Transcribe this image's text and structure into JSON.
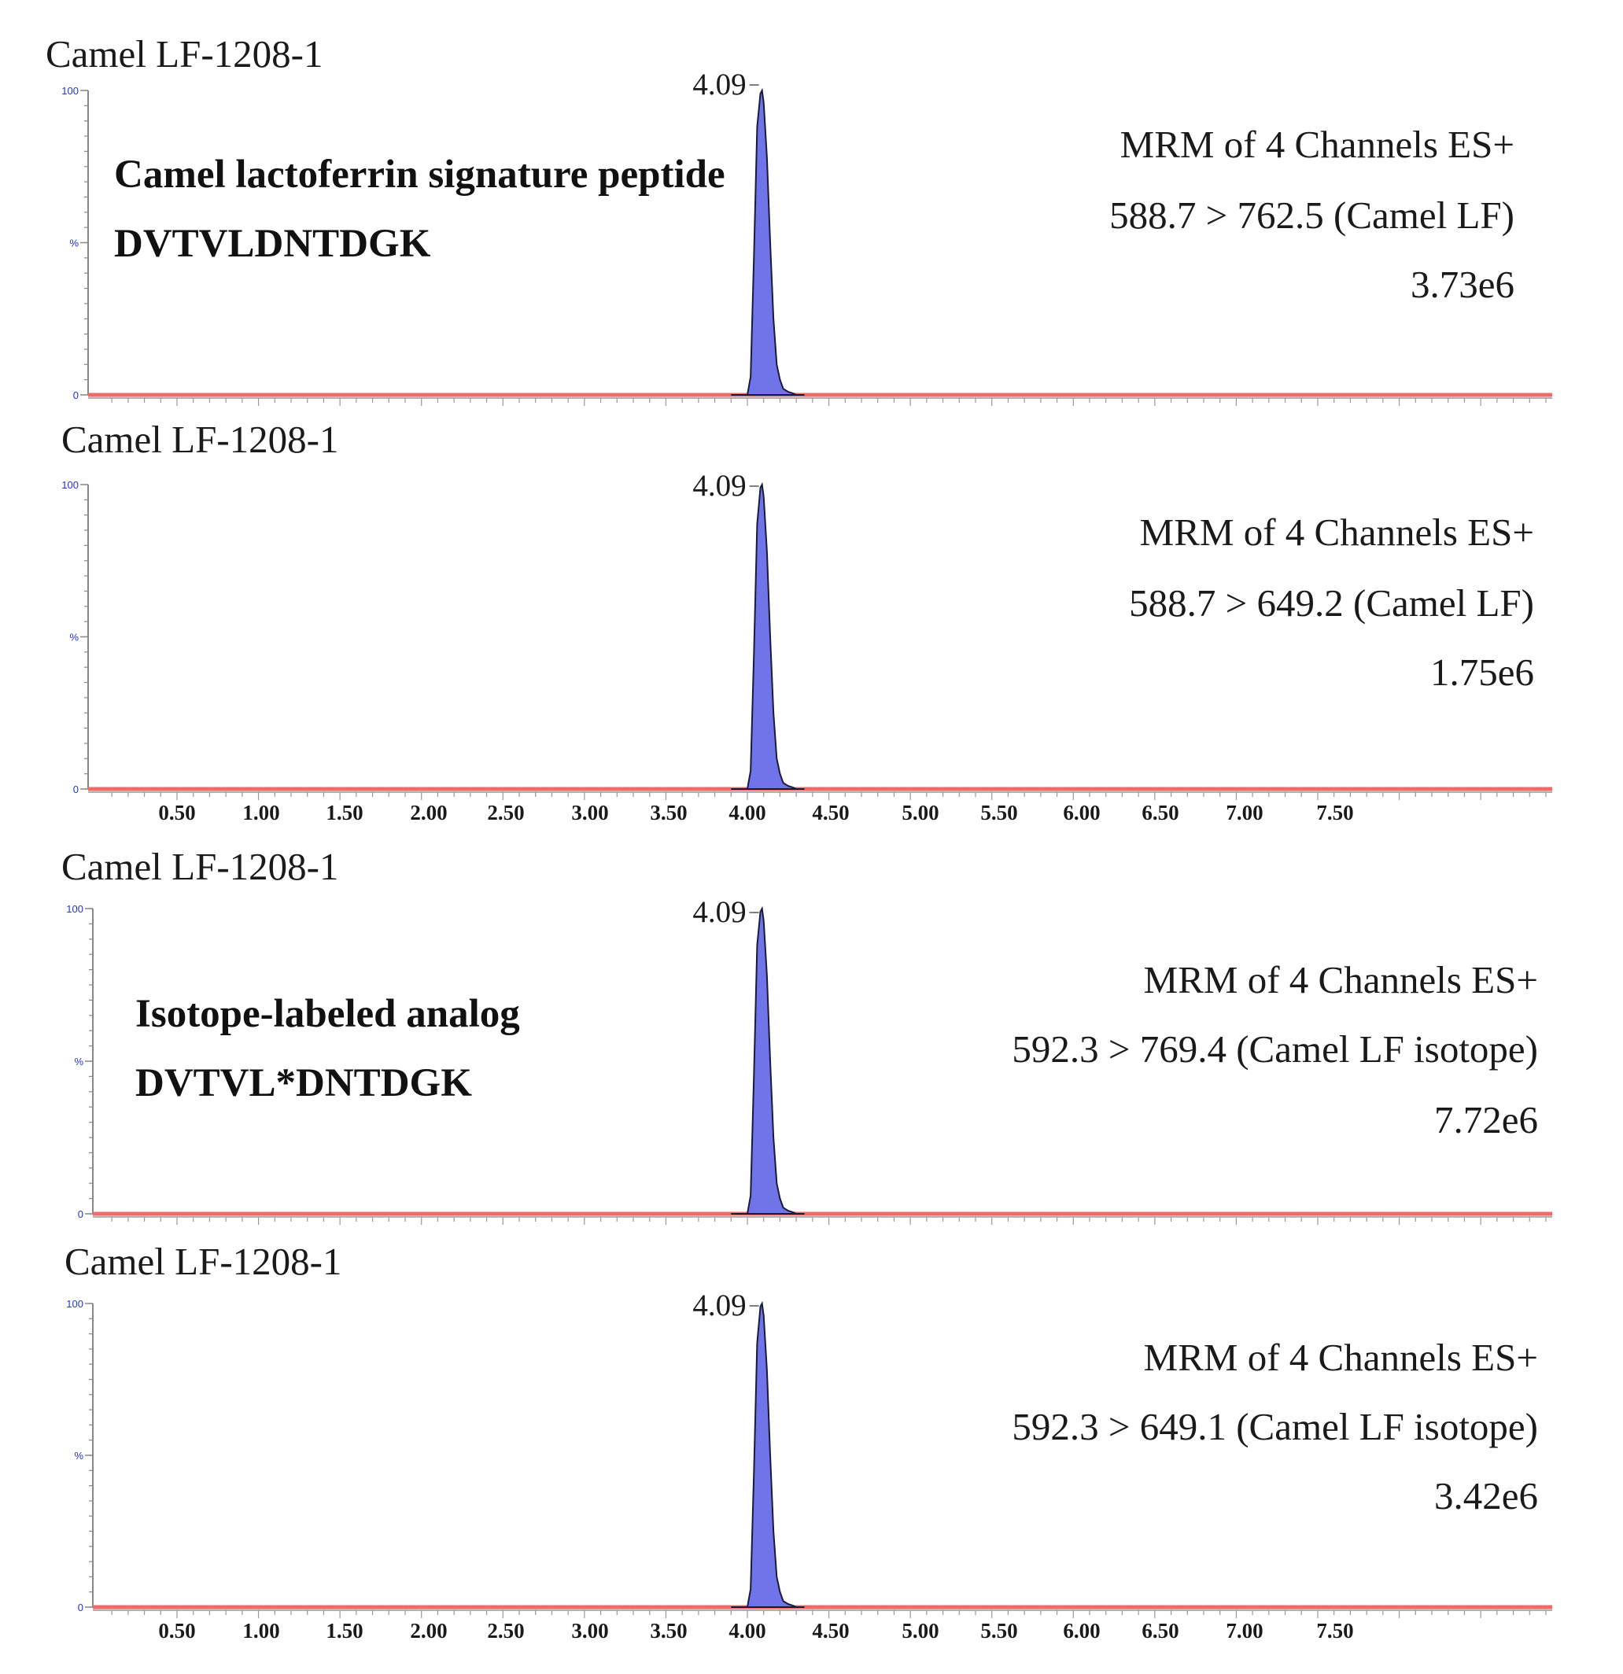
{
  "chart_data": [
    {
      "type": "area",
      "sample": "Camel LF-1208-1",
      "peak_label": "4.09",
      "info": [
        "MRM of 4 Channels ES+",
        "588.7 > 762.5  (Camel  LF)",
        "3.73e6"
      ],
      "annotation": [
        "Camel lactoferrin signature peptide",
        "DVTVLDNTDGK"
      ],
      "x": [
        3.9,
        4.0,
        4.02,
        4.04,
        4.06,
        4.08,
        4.09,
        4.1,
        4.12,
        4.14,
        4.16,
        4.18,
        4.2,
        4.22,
        4.25,
        4.28,
        4.3,
        4.35
      ],
      "y": [
        0,
        0,
        6,
        45,
        88,
        99,
        100,
        96,
        78,
        50,
        25,
        10,
        5,
        2,
        1,
        0.5,
        0,
        0
      ],
      "ytick_labels": [
        "0",
        "%",
        "100"
      ],
      "xtick_labels": [],
      "xlim": [
        0,
        9.0
      ],
      "ylim": [
        0,
        100
      ],
      "colors": {
        "fill": "#6f74e8",
        "baseline": "#f06a6a",
        "axis": "#888888"
      }
    },
    {
      "type": "area",
      "sample": "Camel LF-1208-1",
      "peak_label": "4.09",
      "info": [
        "MRM of 4 Channels ES+",
        "588.7 > 649.2  (Camel  LF)",
        "1.75e6"
      ],
      "annotation": [],
      "x": [
        3.9,
        4.0,
        4.02,
        4.04,
        4.06,
        4.08,
        4.09,
        4.1,
        4.12,
        4.14,
        4.16,
        4.18,
        4.2,
        4.22,
        4.25,
        4.28,
        4.3,
        4.35
      ],
      "y": [
        0,
        0,
        6,
        44,
        87,
        99,
        100,
        96,
        78,
        50,
        25,
        10,
        5,
        2,
        1,
        0.5,
        0,
        0
      ],
      "ytick_labels": [
        "0",
        "%",
        "100"
      ],
      "xtick_labels": [
        "0.50",
        "1.00",
        "1.50",
        "2.00",
        "2.50",
        "3.00",
        "3.50",
        "4.00",
        "4.50",
        "5.00",
        "5.50",
        "6.00",
        "6.50",
        "7.00",
        "7.50"
      ],
      "xlim": [
        0,
        9.0
      ],
      "ylim": [
        0,
        100
      ],
      "colors": {
        "fill": "#6f74e8",
        "baseline": "#f06a6a",
        "axis": "#888888"
      }
    },
    {
      "type": "area",
      "sample": "Camel LF-1208-1",
      "peak_label": "4.09",
      "info": [
        "MRM of 4 Channels ES+",
        "592.3 > 769.4 (Camel  LF isotope)",
        "7.72e6"
      ],
      "annotation": [
        "Isotope-labeled analog",
        "DVTVL*DNTDGK"
      ],
      "x": [
        3.9,
        4.0,
        4.02,
        4.04,
        4.06,
        4.08,
        4.09,
        4.1,
        4.12,
        4.14,
        4.16,
        4.18,
        4.2,
        4.22,
        4.25,
        4.28,
        4.3,
        4.35
      ],
      "y": [
        0,
        0,
        6,
        45,
        88,
        99,
        100,
        96,
        78,
        50,
        25,
        10,
        5,
        2,
        1,
        0.5,
        0,
        0
      ],
      "ytick_labels": [
        "0",
        "%",
        "100"
      ],
      "xtick_labels": [],
      "xlim": [
        0,
        9.0
      ],
      "ylim": [
        0,
        100
      ],
      "colors": {
        "fill": "#6f74e8",
        "baseline": "#f06a6a",
        "axis": "#888888"
      }
    },
    {
      "type": "area",
      "sample": "Camel LF-1208-1",
      "peak_label": "4.09",
      "info": [
        "MRM of 4 Channels ES+",
        "592.3 > 649.1 (Camel  LF isotope)",
        "3.42e6"
      ],
      "annotation": [],
      "x": [
        3.9,
        4.0,
        4.02,
        4.04,
        4.06,
        4.08,
        4.09,
        4.1,
        4.12,
        4.14,
        4.16,
        4.18,
        4.2,
        4.22,
        4.25,
        4.28,
        4.3,
        4.35
      ],
      "y": [
        0,
        0,
        6,
        44,
        87,
        99,
        100,
        96,
        78,
        50,
        25,
        10,
        5,
        2,
        1,
        0.5,
        0,
        0
      ],
      "ytick_labels": [
        "0",
        "%",
        "100"
      ],
      "xtick_labels": [
        "0.50",
        "1.00",
        "1.50",
        "2.00",
        "2.50",
        "3.00",
        "3.50",
        "4.00",
        "4.50",
        "5.00",
        "5.50",
        "6.00",
        "6.50",
        "7.00",
        "7.50"
      ],
      "xlim": [
        0,
        9.0
      ],
      "ylim": [
        0,
        100
      ],
      "colors": {
        "fill": "#6f74e8",
        "baseline": "#f06a6a",
        "axis": "#888888"
      }
    }
  ]
}
